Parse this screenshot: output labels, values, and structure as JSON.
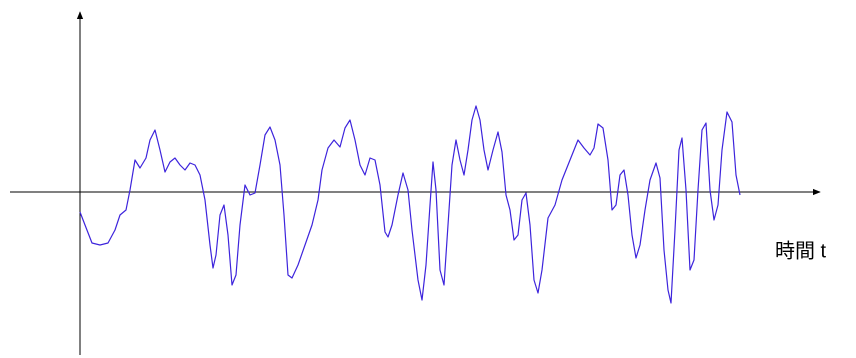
{
  "chart_data": {
    "type": "line",
    "x_label": "時間 t",
    "xlim": [
      -70,
      740
    ],
    "ylim": [
      -163,
      180
    ],
    "series": [
      {
        "color": "#3d24dc",
        "x": [
          0,
          5,
          12,
          20,
          28,
          35,
          40,
          46,
          50,
          55,
          60,
          66,
          70,
          75,
          80,
          85,
          90,
          95,
          100,
          105,
          110,
          115,
          120,
          125,
          130,
          133,
          136,
          140,
          144,
          148,
          152,
          156,
          160,
          165,
          170,
          175,
          180,
          185,
          190,
          195,
          200,
          204,
          208,
          212,
          218,
          225,
          232,
          238,
          242,
          248,
          254,
          260,
          265,
          270,
          275,
          280,
          285,
          290,
          295,
          300,
          305,
          308,
          312,
          318,
          323,
          328,
          332,
          338,
          342,
          346,
          350,
          353,
          356,
          360,
          364,
          368,
          372,
          376,
          380,
          384,
          388,
          392,
          396,
          400,
          404,
          408,
          413,
          418,
          422,
          426,
          430,
          434,
          438,
          442,
          446,
          450,
          454,
          458,
          462,
          468,
          475,
          482,
          490,
          498,
          504,
          510,
          514,
          518,
          523,
          528,
          532,
          536,
          540,
          544,
          548,
          552,
          556,
          560,
          565,
          570,
          576,
          580,
          584,
          588,
          591,
          595,
          599,
          602,
          606,
          610,
          614,
          618,
          622,
          626,
          630,
          634,
          638,
          642,
          647,
          652,
          656,
          660
        ],
        "values": [
          -20,
          -33,
          -51,
          -53,
          -51,
          -38,
          -23,
          -18,
          2,
          32,
          24,
          34,
          52,
          62,
          42,
          20,
          30,
          34,
          27,
          22,
          29,
          27,
          17,
          -8,
          -53,
          -76,
          -63,
          -23,
          -13,
          -43,
          -93,
          -83,
          -33,
          7,
          -3,
          -1,
          27,
          57,
          65,
          52,
          27,
          -23,
          -83,
          -86,
          -73,
          -53,
          -33,
          -8,
          22,
          44,
          52,
          45,
          64,
          72,
          52,
          27,
          17,
          34,
          32,
          7,
          -40,
          -45,
          -33,
          -3,
          19,
          2,
          -38,
          -88,
          -108,
          -73,
          -13,
          30,
          2,
          -78,
          -93,
          -33,
          27,
          52,
          32,
          17,
          42,
          72,
          86,
          72,
          42,
          22,
          42,
          60,
          40,
          -3,
          -18,
          -48,
          -43,
          -8,
          -1,
          -33,
          -88,
          -101,
          -78,
          -26,
          -13,
          12,
          32,
          52,
          44,
          37,
          44,
          68,
          64,
          32,
          -18,
          -13,
          17,
          22,
          -3,
          -43,
          -66,
          -53,
          -18,
          12,
          29,
          14,
          -58,
          -98,
          -111,
          -38,
          42,
          54,
          2,
          -78,
          -68,
          2,
          62,
          69,
          2,
          -28,
          -13,
          42,
          80,
          70,
          17,
          -3
        ]
      }
    ]
  }
}
